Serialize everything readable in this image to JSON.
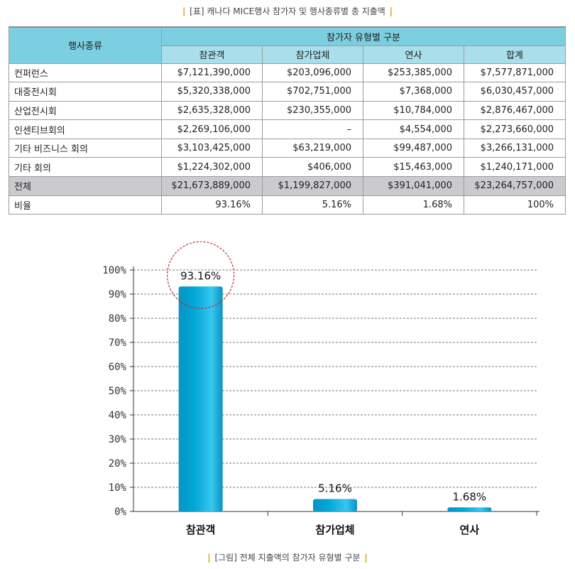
{
  "table_caption": {
    "left": "|",
    "text": "[표] 캐나다 MICE행사 참가자 및 행사종류별 총 지출액",
    "right": "|"
  },
  "table": {
    "category_header": "행사종류",
    "group_header": "참가자 유형별 구분",
    "columns": [
      "참관객",
      "참가업체",
      "연사",
      "합계"
    ],
    "rows": [
      {
        "label": "컨퍼런스",
        "values": [
          "$7,121,390,000",
          "$203,096,000",
          "$253,385,000",
          "$7,577,871,000"
        ]
      },
      {
        "label": "대중전시회",
        "values": [
          "$5,320,338,000",
          "$702,751,000",
          "$7,368,000",
          "$6,030,457,000"
        ]
      },
      {
        "label": "산업전시회",
        "values": [
          "$2,635,328,000",
          "$230,355,000",
          "$10,784,000",
          "$2,876,467,000"
        ]
      },
      {
        "label": "인센티브회의",
        "values": [
          "$2,269,106,000",
          "–",
          "$4,554,000",
          "$2,273,660,000"
        ]
      },
      {
        "label": "기타 비즈니스 회의",
        "values": [
          "$3,103,425,000",
          "$63,219,000",
          "$99,487,000",
          "$3,266,131,000"
        ]
      },
      {
        "label": "기타 회의",
        "values": [
          "$1,224,302,000",
          "$406,000",
          "$15,463,000",
          "$1,240,171,000"
        ]
      },
      {
        "label": "전체",
        "values": [
          "$21,673,889,000",
          "$1,199,827,000",
          "$391,041,000",
          "$23,264,757,000"
        ],
        "highlight": true
      },
      {
        "label": "비율",
        "values": [
          "93.16%",
          "5.16%",
          "1.68%",
          "100%"
        ]
      }
    ]
  },
  "chart_data": {
    "type": "bar",
    "categories": [
      "참관객",
      "참가업체",
      "연사"
    ],
    "values": [
      93.16,
      5.16,
      1.68
    ],
    "value_labels": [
      "93.16%",
      "5.16%",
      "1.68%"
    ],
    "ylim": [
      0,
      100
    ],
    "yticks": [
      "0%",
      "10%",
      "20%",
      "30%",
      "40%",
      "50%",
      "60%",
      "70%",
      "80%",
      "90%",
      "100%"
    ],
    "grid": true,
    "bar_color": "#00a7d6",
    "highlight_color": "#c62828",
    "highlighted_category": "참관객"
  },
  "figure_caption": {
    "left": "|",
    "text": "[그림] 전체 지출액의 참가자 유형별 구분",
    "right": "|"
  }
}
